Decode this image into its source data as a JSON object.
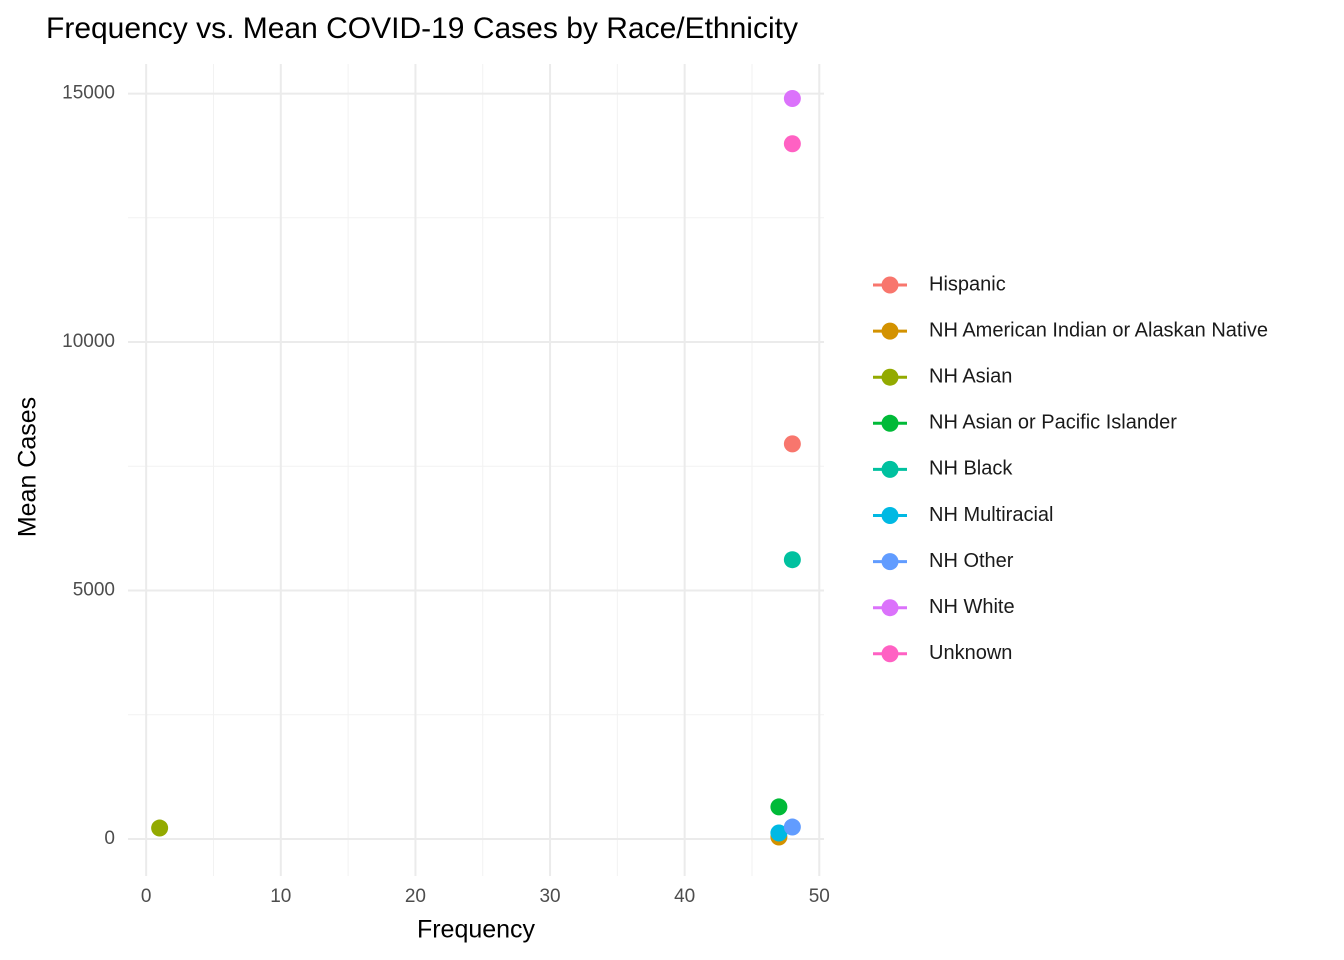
{
  "chart_data": {
    "type": "scatter",
    "title": "Frequency vs. Mean COVID-19 Cases by Race/Ethnicity",
    "x_label": "Frequency",
    "y_label": "Mean Cases",
    "xlim": [
      -1.35,
      50.35
    ],
    "ylim": [
      -745,
      15595
    ],
    "xticks": [
      0,
      10,
      20,
      30,
      40,
      50
    ],
    "yticks": [
      0,
      5000,
      10000,
      15000
    ],
    "grid": true,
    "minor_grid": true,
    "legend": "right",
    "series": [
      {
        "name": "Hispanic",
        "color": "#F8766D",
        "x": [
          48
        ],
        "values": [
          7950
        ]
      },
      {
        "name": "NH American Indian or Alaskan Native",
        "color": "#D39200",
        "x": [
          47
        ],
        "values": [
          40
        ]
      },
      {
        "name": "NH Asian",
        "color": "#93AA00",
        "x": [
          1
        ],
        "values": [
          220
        ]
      },
      {
        "name": "NH Asian or Pacific Islander",
        "color": "#00BA38",
        "x": [
          47
        ],
        "values": [
          645
        ]
      },
      {
        "name": "NH Black",
        "color": "#00C19F",
        "x": [
          48
        ],
        "values": [
          5620
        ]
      },
      {
        "name": "NH Multiracial",
        "color": "#00B9E3",
        "x": [
          47
        ],
        "values": [
          120
        ]
      },
      {
        "name": "NH Other",
        "color": "#619CFF",
        "x": [
          48
        ],
        "values": [
          240
        ]
      },
      {
        "name": "NH White",
        "color": "#DB72FB",
        "x": [
          48
        ],
        "values": [
          14900
        ]
      },
      {
        "name": "Unknown",
        "color": "#FF61C3",
        "x": [
          48
        ],
        "values": [
          13990
        ]
      }
    ]
  }
}
